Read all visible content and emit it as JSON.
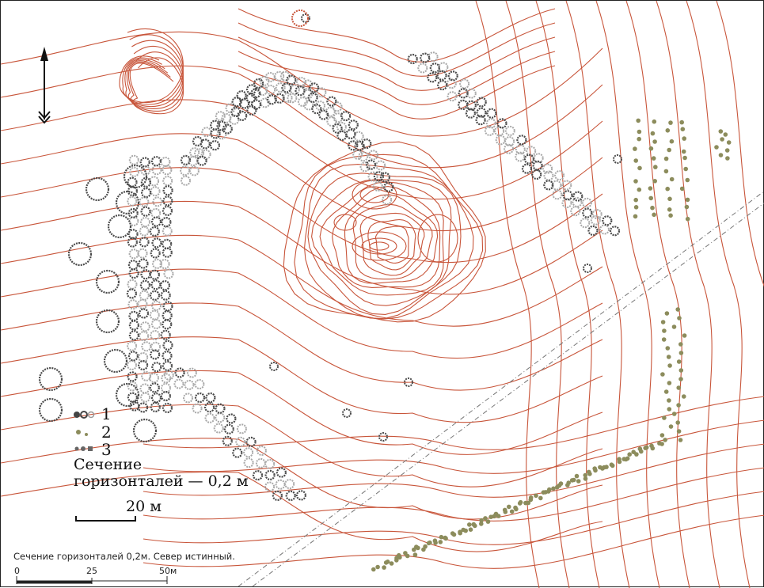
{
  "legend": {
    "items": [
      {
        "label": "1",
        "color": "#5a5a5a"
      },
      {
        "label": "2",
        "color": "#8a8a5a"
      },
      {
        "label": "3",
        "color": "#9a9a9a"
      }
    ]
  },
  "contour_note_line1": "Сечение",
  "contour_note_line2": "горизонталей — 0,2 м",
  "scale_bar_label": "20 м",
  "footer": {
    "caption": "Сечение горизонталей 0,2м. Север истинный.",
    "ticks": [
      "0",
      "25",
      "50м"
    ]
  },
  "colors": {
    "contour": "#c8553a",
    "dark_circle": "#4a4a4a",
    "light_circle": "#a8a8a8",
    "olive_dot": "#8c8c5c",
    "railway": "#777777"
  },
  "north_arrow_icon": "north-arrow-icon"
}
